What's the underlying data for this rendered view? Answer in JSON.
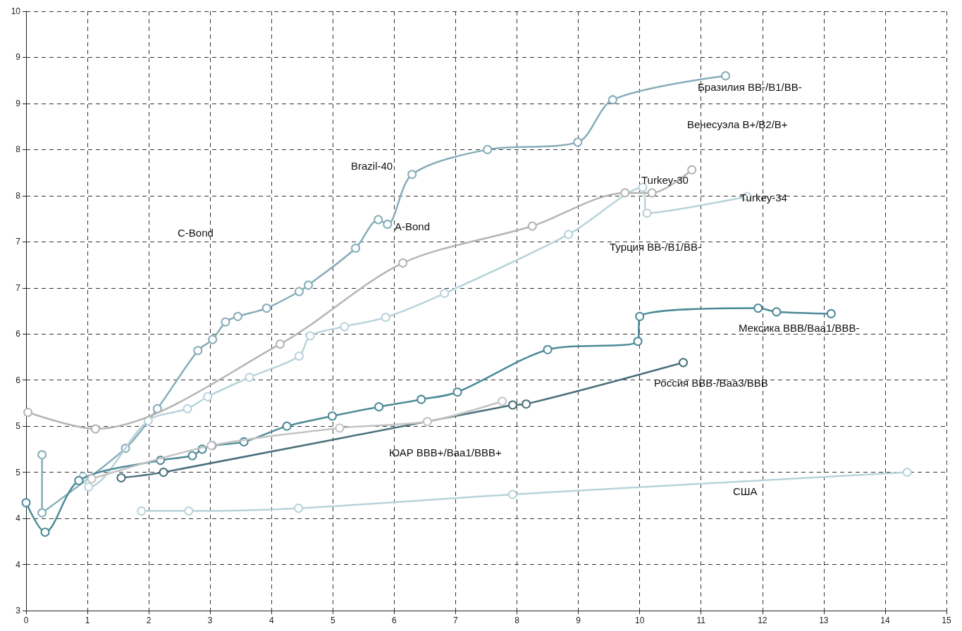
{
  "chart_data": {
    "type": "line",
    "marker": "circle",
    "grid": true,
    "xlim": [
      0,
      15
    ],
    "xticks": [
      0,
      1,
      2,
      3,
      4,
      5,
      6,
      7,
      8,
      9,
      10,
      11,
      12,
      13,
      14,
      15
    ],
    "ylim": [
      3,
      9.5
    ],
    "yticks": [
      {
        "value": 3,
        "label": "3"
      },
      {
        "value": 3.5,
        "label": "4"
      },
      {
        "value": 4,
        "label": "4"
      },
      {
        "value": 4.5,
        "label": "5"
      },
      {
        "value": 5,
        "label": "5"
      },
      {
        "value": 5.5,
        "label": "6"
      },
      {
        "value": 6,
        "label": "6"
      },
      {
        "value": 6.5,
        "label": "7"
      },
      {
        "value": 7,
        "label": "7"
      },
      {
        "value": 7.5,
        "label": "8"
      },
      {
        "value": 8,
        "label": "8"
      },
      {
        "value": 8.5,
        "label": "9"
      },
      {
        "value": 9,
        "label": "9"
      },
      {
        "value": 9.5,
        "label": "10"
      }
    ],
    "series": [
      {
        "color": "#86adb9",
        "x": [
          0.26,
          0.26,
          1.62,
          2.14,
          2.8,
          3.04,
          3.25,
          3.45,
          3.92,
          4.45,
          4.6,
          5.37,
          5.74,
          5.89,
          6.29,
          7.52,
          8.99,
          9.56,
          11.4
        ],
        "values": [
          4.69,
          4.06,
          4.76,
          5.19,
          5.82,
          5.94,
          6.13,
          6.19,
          6.28,
          6.46,
          6.53,
          6.93,
          7.24,
          7.19,
          7.73,
          8.0,
          8.08,
          8.54,
          8.8
        ]
      },
      {
        "color": "#b9d3db",
        "x": [
          0.93,
          1.02,
          1.99,
          2.63,
          2.96,
          3.64,
          4.45,
          4.63,
          5.19,
          5.86,
          6.82,
          8.84,
          10.05,
          10.12,
          11.75
        ],
        "values": [
          4.45,
          4.34,
          5.06,
          5.19,
          5.32,
          5.53,
          5.76,
          5.98,
          6.08,
          6.18,
          6.44,
          7.08,
          7.59,
          7.31,
          7.49
        ]
      },
      {
        "color": "#b4b4b4",
        "x": [
          0.03,
          1.13,
          4.14,
          6.14,
          8.25,
          9.76,
          10.2,
          10.85
        ],
        "values": [
          5.15,
          4.97,
          5.89,
          6.77,
          7.17,
          7.53,
          7.53,
          7.78
        ]
      },
      {
        "color": "#4d8a98",
        "x": [
          0,
          0.31,
          0.86,
          2.19,
          2.71,
          2.87,
          3.03,
          3.55,
          4.25,
          4.99,
          5.75,
          6.44,
          7.03,
          8.5,
          9.97,
          10.0,
          11.93,
          12.23,
          13.12
        ],
        "values": [
          4.17,
          3.85,
          4.41,
          4.63,
          4.68,
          4.75,
          4.79,
          4.83,
          5.0,
          5.11,
          5.21,
          5.29,
          5.37,
          5.83,
          5.92,
          6.19,
          6.28,
          6.24,
          6.22
        ]
      },
      {
        "color": "#4a6f7a",
        "x": [
          1.55,
          2.24,
          7.93,
          8.15,
          10.71
        ],
        "values": [
          4.44,
          4.5,
          5.23,
          5.24,
          5.69
        ]
      },
      {
        "color": "#c3c3c3",
        "x": [
          1.07,
          3.02,
          5.11,
          6.54,
          7.76
        ],
        "values": [
          4.43,
          4.79,
          4.98,
          5.05,
          5.27
        ]
      },
      {
        "color": "#b9d3db",
        "x": [
          1.88,
          2.65,
          4.44,
          7.93,
          14.36
        ],
        "values": [
          4.08,
          4.08,
          4.11,
          4.26,
          4.5
        ]
      }
    ],
    "annotations": [
      "Бразилия BB-/B1/BB-",
      "Венесуэла B+/B2/B+",
      "Brazil-40",
      "Turkey-30",
      "Turkey-34",
      "A-Bond",
      "C-Bond",
      "Турция BB-/B1/BB-",
      "Мексика BBB/Baa1/BBB-",
      "Россия BBB-/Baa3/BBB",
      "ЮАР BBB+/Baa1/BBB+",
      "США"
    ]
  }
}
